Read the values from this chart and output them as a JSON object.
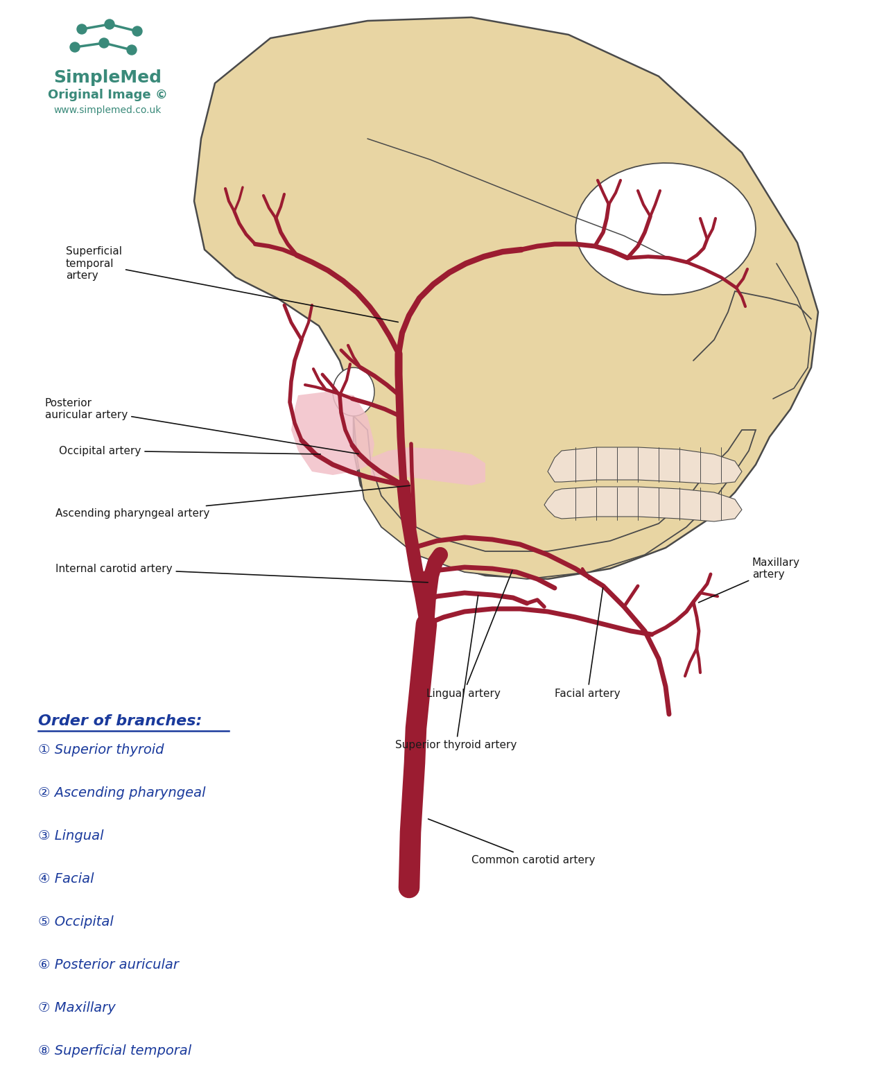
{
  "bg_color": "#ffffff",
  "skull_color": "#e8d5a3",
  "skull_edge_color": "#4a4a4a",
  "artery_color": "#9b1c31",
  "pink_highlight": "#f2c0c8",
  "text_black": "#1a1a1a",
  "text_blue": "#1a3a9c",
  "simplemed_color": "#3a8a7a",
  "teeth_color": "#f0e0d0",
  "mnemonic_title": "Order of branches:",
  "mnemonic_items": [
    "① Superior thyroid",
    "② Ascending pharyngeal",
    "③ Lingual",
    "④ Facial",
    "⑤ Occipital",
    "⑥ Posterior auricular",
    "⑦ Maxillary",
    "⑧ Superficial temporal"
  ]
}
